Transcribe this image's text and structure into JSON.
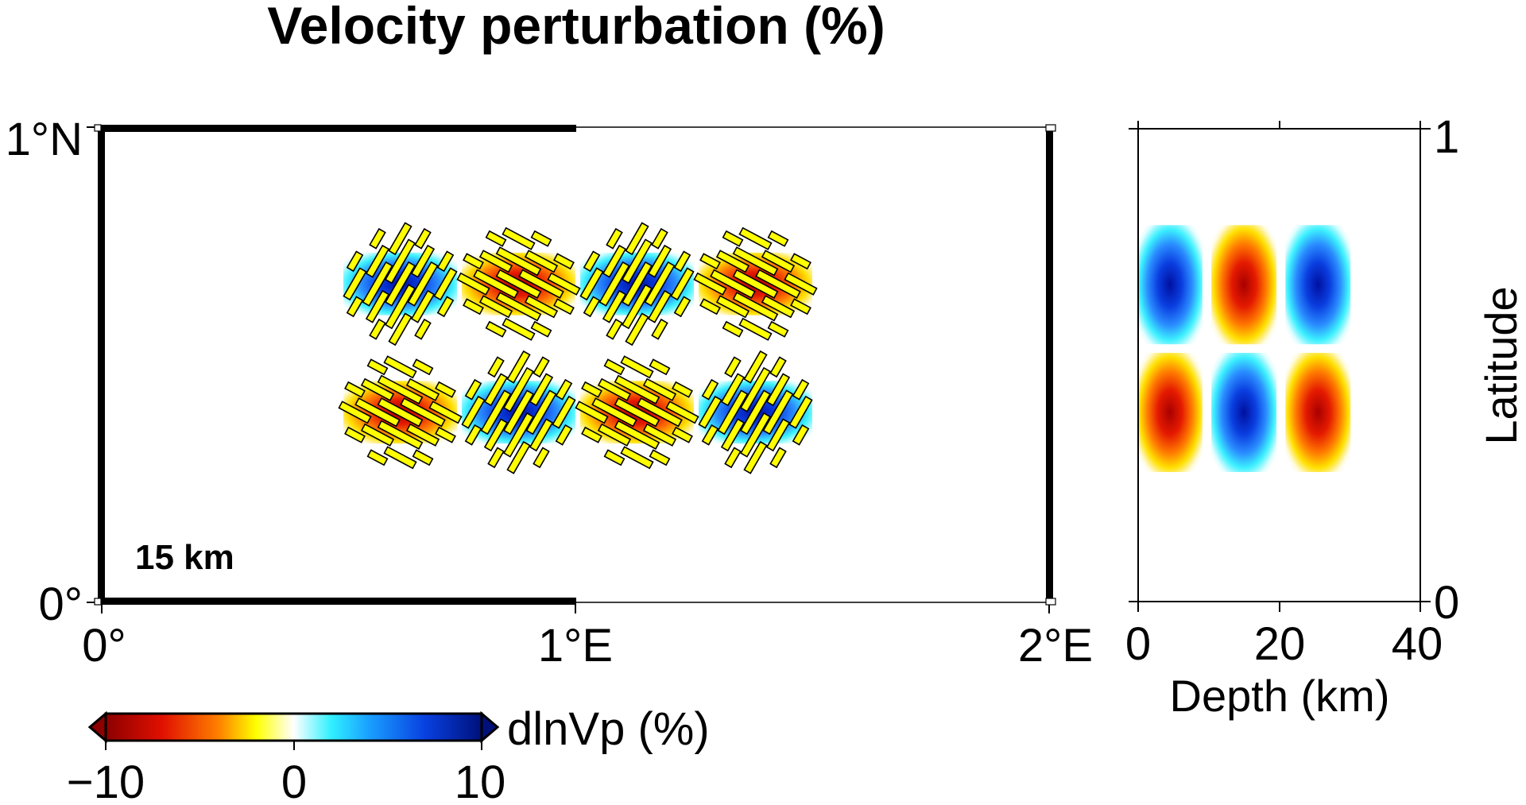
{
  "title": "Velocity perturbation (%)",
  "map": {
    "x_ticks": [
      "0°",
      "1°E",
      "2°E"
    ],
    "y_ticks": [
      "0°",
      "1°N"
    ],
    "depth_label": "15 km",
    "x_range_deg": [
      0,
      2
    ],
    "y_range_deg": [
      0,
      1
    ],
    "anomalies_rows": [
      [
        "fast",
        "slow",
        "fast",
        "slow"
      ],
      [
        "slow",
        "fast",
        "slow",
        "fast"
      ]
    ],
    "anomaly_lon_centers": [
      0.63,
      0.88,
      1.13,
      1.38
    ],
    "anomaly_lat_centers": [
      0.67,
      0.4
    ],
    "anomaly_half_width_deg": 0.12
  },
  "section": {
    "x_label": "Depth (km)",
    "y_label": "Latitude",
    "x_ticks": [
      "0",
      "20",
      "40"
    ],
    "y_ticks": [
      "0",
      "1"
    ],
    "x_range": [
      0,
      40
    ],
    "y_range": [
      0,
      1
    ],
    "depth_centers_km": [
      4.5,
      15,
      25.5
    ],
    "rows": [
      [
        "fast",
        "slow",
        "fast"
      ],
      [
        "slow",
        "fast",
        "slow"
      ]
    ]
  },
  "colorbar": {
    "label": "dlnVp (%)",
    "ticks": [
      "−10",
      "0",
      "10"
    ],
    "range": [
      -10,
      10
    ]
  },
  "colors": {
    "slow_core": "#b00000",
    "slow_mid": "#ff5a00",
    "slow_edge": "#ffe800",
    "fast_core": "#0018a8",
    "fast_mid": "#1870ff",
    "fast_edge": "#30f0ff",
    "fast_bar": "#ffff00"
  }
}
